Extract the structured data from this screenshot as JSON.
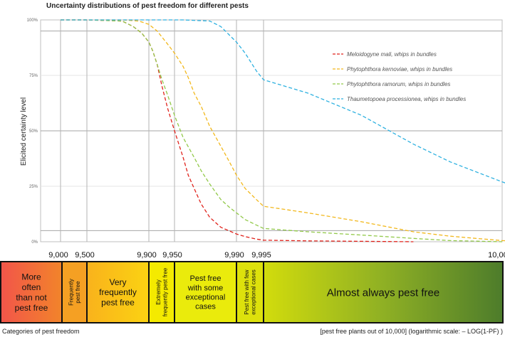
{
  "chart_data": {
    "type": "line",
    "title": "Uncertainty distributions of pest freedom for different pests",
    "ylabel": "Elicited certainty level",
    "xlabel": "[pest free plants out of 10,000] (logarithmic scale: – LOG(1-PF) )",
    "x_scale": "log(1-PF)",
    "ylim": [
      0,
      100
    ],
    "y_ticks": [
      "0%",
      "25%",
      "50%",
      "75%",
      "100%"
    ],
    "x_ticks": [
      "9,000",
      "9,500",
      "9,900",
      "9,950",
      "9,990",
      "9,995",
      "10,000"
    ],
    "legend_position": "right",
    "series": [
      {
        "name": "Meloidogyne mali, whips in bundles",
        "color": "#e0231c",
        "points": [
          [
            9000,
            100
          ],
          [
            9500,
            100
          ],
          [
            9800,
            99.5
          ],
          [
            9850,
            97
          ],
          [
            9880,
            94
          ],
          [
            9900,
            90
          ],
          [
            9910,
            86
          ],
          [
            9920,
            80
          ],
          [
            9930,
            70
          ],
          [
            9940,
            60
          ],
          [
            9950,
            50
          ],
          [
            9960,
            38
          ],
          [
            9965,
            30
          ],
          [
            9970,
            24
          ],
          [
            9975,
            17
          ],
          [
            9980,
            11
          ],
          [
            9985,
            6.5
          ],
          [
            9990,
            3.5
          ],
          [
            9992,
            2.3
          ],
          [
            9994,
            1.2
          ],
          [
            9995,
            0.7
          ],
          [
            9996,
            0.4
          ],
          [
            9997,
            0.2
          ],
          [
            9998,
            0
          ]
        ]
      },
      {
        "name": "Phytophthora kernoviae, whips in bundles",
        "color": "#f2b81c",
        "points": [
          [
            9000,
            100
          ],
          [
            9500,
            100
          ],
          [
            9800,
            100
          ],
          [
            9870,
            99.5
          ],
          [
            9900,
            98
          ],
          [
            9920,
            95
          ],
          [
            9940,
            89
          ],
          [
            9950,
            85
          ],
          [
            9960,
            79
          ],
          [
            9965,
            74
          ],
          [
            9970,
            67
          ],
          [
            9975,
            61
          ],
          [
            9980,
            52
          ],
          [
            9985,
            43
          ],
          [
            9988,
            36
          ],
          [
            9990,
            30
          ],
          [
            9992,
            24
          ],
          [
            9994,
            19
          ],
          [
            9995,
            16
          ],
          [
            9996,
            13
          ],
          [
            9997,
            9
          ],
          [
            9998,
            4.5
          ],
          [
            9998.5,
            2.5
          ],
          [
            9999,
            0.5
          ],
          [
            9999.2,
            0
          ]
        ]
      },
      {
        "name": "Phytophthora ramorum, whips in bundles",
        "color": "#92c94a",
        "points": [
          [
            9000,
            100
          ],
          [
            9500,
            100
          ],
          [
            9800,
            99.5
          ],
          [
            9850,
            97
          ],
          [
            9880,
            94
          ],
          [
            9900,
            90
          ],
          [
            9910,
            86
          ],
          [
            9920,
            80
          ],
          [
            9930,
            73
          ],
          [
            9940,
            66
          ],
          [
            9950,
            57
          ],
          [
            9960,
            47
          ],
          [
            9970,
            38
          ],
          [
            9975,
            32
          ],
          [
            9980,
            26
          ],
          [
            9985,
            19
          ],
          [
            9988,
            15.5
          ],
          [
            9990,
            13
          ],
          [
            9992,
            10
          ],
          [
            9994,
            7.5
          ],
          [
            9995,
            6
          ],
          [
            9996,
            4.5
          ],
          [
            9997,
            3
          ],
          [
            9998,
            1.5
          ],
          [
            9998.5,
            0.5
          ],
          [
            9999,
            0
          ]
        ]
      },
      {
        "name": "Thaumetopoea processionea, whips in bundles",
        "color": "#2eb1e0",
        "points": [
          [
            9000,
            100
          ],
          [
            9500,
            100
          ],
          [
            9900,
            100
          ],
          [
            9960,
            100
          ],
          [
            9980,
            99.5
          ],
          [
            9985,
            97
          ],
          [
            9990,
            90
          ],
          [
            9992,
            85
          ],
          [
            9994,
            77
          ],
          [
            9995,
            73
          ],
          [
            9996,
            67
          ],
          [
            9997,
            57
          ],
          [
            9998,
            44
          ],
          [
            9998.5,
            36
          ],
          [
            9999,
            27
          ],
          [
            9999.3,
            20
          ],
          [
            9999.5,
            15
          ],
          [
            9999.65,
            11
          ],
          [
            9999.75,
            7.5
          ],
          [
            9999.83,
            4.5
          ],
          [
            9999.88,
            3
          ],
          [
            9999.92,
            1.8
          ],
          [
            9999.95,
            1
          ],
          [
            9999.97,
            0.5
          ],
          [
            9999.99,
            0
          ]
        ]
      }
    ],
    "categories_label": "Categories of pest freedom",
    "categories": [
      {
        "lines": [
          "More",
          "often",
          "than not",
          "pest free"
        ],
        "color": "#ef4d3c",
        "vertical": false
      },
      {
        "lines": [
          "Frequently",
          "pest free"
        ],
        "color": "#f5a023",
        "vertical": true
      },
      {
        "lines": [
          "Very",
          "frequently",
          "pest free"
        ],
        "color": "#fbca1a",
        "vertical": false
      },
      {
        "lines": [
          "Extremely",
          "frequently pest free"
        ],
        "color": "#f4ea00",
        "vertical": true
      },
      {
        "lines": [
          "Pest free",
          "with some",
          "exceptional",
          "cases"
        ],
        "color": "#eaeb0c",
        "vertical": false
      },
      {
        "lines": [
          "Pest free with few",
          "exceptional cases"
        ],
        "color": "#dde10c",
        "vertical": true
      },
      {
        "lines": [
          "Almost always pest free"
        ],
        "color": "#a9c61f",
        "vertical": false
      }
    ]
  }
}
